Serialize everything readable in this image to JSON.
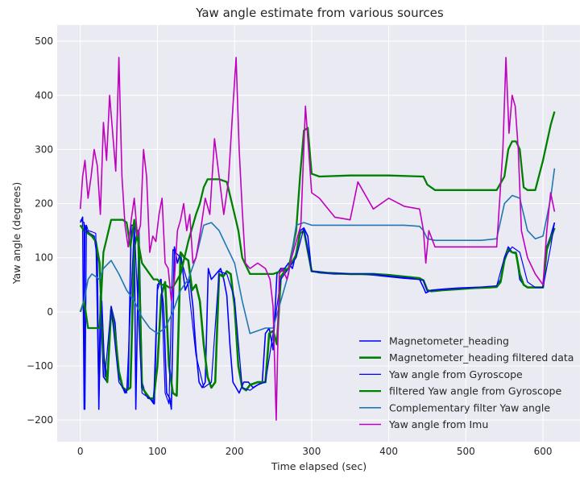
{
  "chart_data": {
    "type": "line",
    "title": "Yaw angle estimate from various sources",
    "xlabel": "Time elapsed (sec)",
    "ylabel": "Yaw angle (degrees)",
    "xlim": [
      -30,
      648
    ],
    "ylim": [
      -240,
      530
    ],
    "xticks": [
      0,
      100,
      200,
      300,
      400,
      500,
      600
    ],
    "yticks": [
      -200,
      -100,
      0,
      100,
      200,
      300,
      400,
      500
    ],
    "grid": true,
    "background": "#EAEAF2",
    "legend_position": "lower-right",
    "series": [
      {
        "name": "Magnetometer_heading",
        "color": "#0000FF",
        "width": 1.6,
        "x": [
          0,
          3,
          5,
          6,
          8,
          12,
          18,
          22,
          24,
          26,
          30,
          35,
          40,
          45,
          50,
          55,
          58,
          62,
          66,
          70,
          72,
          76,
          80,
          84,
          88,
          92,
          96,
          100,
          104,
          108,
          112,
          116,
          118,
          122,
          126,
          130,
          136,
          142,
          146,
          150,
          154,
          158,
          162,
          166,
          170,
          176,
          182,
          186,
          190,
          194,
          198,
          202,
          206,
          212,
          218,
          224,
          230,
          236,
          240,
          245,
          250,
          255,
          260,
          265,
          270,
          275,
          280,
          285,
          290,
          295,
          300,
          310,
          330,
          360,
          380,
          400,
          420,
          440,
          445,
          448,
          455,
          470,
          490,
          510,
          530,
          540,
          545,
          550,
          555,
          560,
          565,
          570,
          575,
          580,
          590,
          600,
          605,
          610,
          615
        ],
        "y": [
          165,
          175,
          -180,
          160,
          150,
          145,
          140,
          100,
          -180,
          30,
          -120,
          -130,
          10,
          -20,
          -120,
          -140,
          -150,
          -140,
          160,
          160,
          -180,
          150,
          -130,
          -150,
          -160,
          -160,
          -170,
          40,
          60,
          10,
          -150,
          -160,
          -180,
          120,
          90,
          110,
          40,
          60,
          10,
          -70,
          -130,
          -140,
          -130,
          80,
          60,
          70,
          80,
          60,
          30,
          -60,
          -130,
          -140,
          -150,
          -130,
          -130,
          -140,
          -135,
          -130,
          -40,
          -30,
          -70,
          70,
          80,
          80,
          90,
          80,
          110,
          150,
          155,
          140,
          75,
          72,
          70,
          70,
          68,
          65,
          62,
          60,
          45,
          35,
          40,
          42,
          44,
          45,
          45,
          48,
          60,
          100,
          120,
          110,
          110,
          60,
          50,
          45,
          45,
          45,
          120,
          140,
          165
        ]
      },
      {
        "name": "Magnetometer_heading filtered data",
        "color": "#008000",
        "width": 2.6,
        "x": [
          0,
          5,
          10,
          15,
          20,
          25,
          30,
          35,
          40,
          45,
          50,
          55,
          60,
          65,
          70,
          75,
          80,
          85,
          90,
          95,
          100,
          105,
          110,
          115,
          120,
          125,
          130,
          135,
          140,
          145,
          150,
          155,
          160,
          165,
          170,
          175,
          180,
          185,
          190,
          195,
          200,
          205,
          210,
          215,
          220,
          230,
          240,
          245,
          250,
          255,
          260,
          265,
          270,
          280,
          285,
          290,
          300,
          320,
          350,
          380,
          400,
          420,
          440,
          445,
          450,
          455,
          470,
          490,
          510,
          530,
          540,
          545,
          550,
          555,
          560,
          565,
          570,
          575,
          580,
          590,
          600,
          605,
          610,
          615
        ],
        "y": [
          160,
          150,
          145,
          140,
          130,
          90,
          -80,
          -130,
          5,
          -40,
          -110,
          -140,
          -145,
          -140,
          120,
          150,
          -140,
          -150,
          -160,
          -160,
          -100,
          30,
          55,
          -100,
          -150,
          -155,
          110,
          100,
          95,
          40,
          50,
          20,
          -60,
          -120,
          -140,
          -130,
          70,
          65,
          75,
          70,
          10,
          -100,
          -140,
          -145,
          -135,
          -130,
          -130,
          -40,
          -35,
          -60,
          65,
          75,
          80,
          105,
          145,
          150,
          75,
          72,
          70,
          70,
          68,
          65,
          62,
          58,
          40,
          38,
          40,
          42,
          44,
          45,
          46,
          55,
          95,
          115,
          110,
          108,
          70,
          50,
          45,
          45,
          45,
          115,
          135,
          155
        ]
      },
      {
        "name": "Yaw angle from Gyroscope",
        "color": "#0000FF",
        "width": 1.2,
        "x": [
          0,
          5,
          6,
          8,
          10,
          15,
          20,
          24,
          28,
          32,
          40,
          50,
          60,
          70,
          80,
          90,
          95,
          100,
          105,
          110,
          115,
          120,
          130,
          140,
          150,
          160,
          170,
          180,
          190,
          200,
          210,
          220,
          230,
          240,
          250,
          260,
          270,
          280,
          290,
          300,
          320,
          350,
          380,
          400,
          430,
          445,
          450,
          460,
          480,
          500,
          520,
          540,
          550,
          560,
          570,
          580,
          590,
          600,
          610,
          615
        ],
        "y": [
          170,
          165,
          -180,
          160,
          150,
          148,
          145,
          -170,
          20,
          -120,
          10,
          -130,
          -150,
          160,
          -150,
          -160,
          -170,
          50,
          60,
          -150,
          -170,
          115,
          100,
          50,
          -80,
          -140,
          -130,
          75,
          70,
          25,
          -140,
          -145,
          -135,
          -130,
          -40,
          60,
          80,
          100,
          155,
          75,
          72,
          70,
          70,
          66,
          62,
          58,
          38,
          40,
          42,
          44,
          46,
          48,
          100,
          120,
          110,
          55,
          45,
          45,
          120,
          165
        ]
      },
      {
        "name": "filtered Yaw angle from Gyroscope",
        "color": "#008000",
        "width": 2.3,
        "x": [
          0,
          5,
          10,
          15,
          20,
          25,
          30,
          40,
          50,
          55,
          60,
          65,
          70,
          80,
          90,
          95,
          100,
          105,
          110,
          115,
          120,
          130,
          140,
          150,
          155,
          160,
          165,
          170,
          180,
          190,
          200,
          205,
          210,
          220,
          230,
          240,
          250,
          260,
          270,
          280,
          285,
          290,
          295,
          300,
          310,
          350,
          400,
          445,
          450,
          460,
          500,
          540,
          550,
          555,
          560,
          565,
          570,
          575,
          580,
          590,
          600,
          610,
          615
        ],
        "y": [
          0,
          20,
          -30,
          -30,
          -30,
          -30,
          110,
          170,
          170,
          170,
          165,
          120,
          170,
          90,
          70,
          60,
          60,
          50,
          50,
          45,
          45,
          70,
          130,
          180,
          200,
          230,
          245,
          245,
          245,
          240,
          180,
          150,
          100,
          70,
          70,
          70,
          70,
          75,
          80,
          150,
          250,
          335,
          340,
          255,
          250,
          252,
          252,
          250,
          235,
          225,
          225,
          225,
          250,
          300,
          315,
          315,
          300,
          230,
          225,
          225,
          280,
          345,
          370
        ]
      },
      {
        "name": "Complementary filter Yaw angle",
        "color": "#1F77B4",
        "width": 1.6,
        "x": [
          0,
          5,
          10,
          15,
          20,
          25,
          30,
          40,
          50,
          60,
          70,
          80,
          90,
          100,
          110,
          120,
          130,
          140,
          150,
          160,
          170,
          180,
          190,
          200,
          210,
          220,
          230,
          240,
          250,
          260,
          270,
          280,
          290,
          300,
          310,
          330,
          360,
          380,
          400,
          420,
          440,
          445,
          450,
          460,
          480,
          500,
          520,
          540,
          550,
          560,
          570,
          580,
          590,
          600,
          610,
          615
        ],
        "y": [
          0,
          20,
          60,
          70,
          65,
          60,
          80,
          95,
          70,
          40,
          20,
          -10,
          -30,
          -40,
          -30,
          0,
          40,
          60,
          100,
          160,
          165,
          150,
          120,
          90,
          20,
          -40,
          -35,
          -30,
          -30,
          20,
          70,
          160,
          165,
          160,
          160,
          160,
          160,
          160,
          160,
          160,
          158,
          150,
          135,
          132,
          132,
          132,
          132,
          135,
          200,
          215,
          210,
          150,
          135,
          140,
          210,
          265
        ]
      },
      {
        "name": "Yaw angle from Imu",
        "color": "#BF00BF",
        "width": 1.6,
        "x": [
          0,
          3,
          6,
          10,
          14,
          18,
          22,
          26,
          30,
          34,
          38,
          42,
          46,
          50,
          54,
          58,
          62,
          66,
          70,
          74,
          78,
          82,
          86,
          90,
          94,
          98,
          102,
          106,
          110,
          114,
          118,
          122,
          126,
          130,
          134,
          138,
          142,
          146,
          150,
          156,
          162,
          168,
          174,
          180,
          186,
          192,
          198,
          202,
          206,
          210,
          214,
          220,
          230,
          240,
          246,
          250,
          254,
          258,
          262,
          268,
          274,
          280,
          286,
          292,
          296,
          300,
          310,
          330,
          350,
          360,
          380,
          400,
          420,
          440,
          445,
          448,
          452,
          460,
          480,
          500,
          520,
          540,
          548,
          552,
          556,
          560,
          564,
          568,
          572,
          580,
          590,
          600,
          605,
          610,
          615
        ],
        "y": [
          190,
          250,
          280,
          210,
          250,
          300,
          270,
          180,
          350,
          280,
          400,
          330,
          260,
          470,
          250,
          160,
          120,
          170,
          210,
          140,
          160,
          300,
          250,
          110,
          140,
          130,
          180,
          210,
          90,
          80,
          20,
          60,
          150,
          170,
          200,
          150,
          180,
          90,
          100,
          150,
          210,
          180,
          320,
          250,
          180,
          240,
          380,
          470,
          300,
          190,
          90,
          80,
          90,
          80,
          60,
          10,
          -200,
          70,
          80,
          60,
          100,
          130,
          160,
          380,
          300,
          220,
          210,
          175,
          170,
          240,
          190,
          210,
          195,
          190,
          150,
          90,
          150,
          120,
          120,
          120,
          120,
          120,
          300,
          470,
          330,
          400,
          380,
          300,
          150,
          100,
          70,
          50,
          150,
          220,
          185
        ]
      }
    ]
  }
}
